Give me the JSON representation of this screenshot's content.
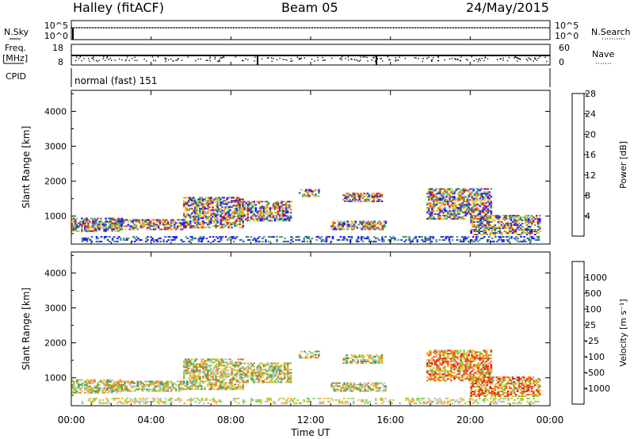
{
  "header": {
    "station": "Halley (fitACF)",
    "beam": "Beam 05",
    "date": "24/May/2015"
  },
  "top_panels": {
    "nsky_label": "N.Sky",
    "nsky_ticks": [
      "10^5",
      "10^0"
    ],
    "nsearch_label": "N.Search",
    "nsearch_ticks": [
      "10^5",
      "10^0"
    ],
    "freq_label_1": "Freq.",
    "freq_label_2": "[MHz]",
    "freq_ticks": [
      "18",
      "8"
    ],
    "nave_label": "Nave",
    "nave_ticks": [
      "60",
      "0"
    ],
    "cpid_label": "CPID",
    "cpid_value": "normal (fast) 151"
  },
  "chart_data": [
    {
      "type": "heatmap",
      "name": "power",
      "ylabel": "Slant Range [km]",
      "ylim": [
        200,
        4600
      ],
      "yticks": [
        "1000",
        "2000",
        "3000",
        "4000"
      ],
      "colorbar_label": "Power [dB]",
      "colorbar_ticks": [
        "4",
        "8",
        "12",
        "16",
        "20",
        "24",
        "28"
      ],
      "colorbar_colors": [
        "#1515ff",
        "#2b4fb0",
        "#4a9a7a",
        "#9bd84a",
        "#f0c020",
        "#f07a10",
        "#e31a1a"
      ]
    },
    {
      "type": "heatmap",
      "name": "velocity",
      "xlabel": "Time UT",
      "ylabel": "Slant Range [km]",
      "ylim": [
        200,
        4600
      ],
      "yticks": [
        "1000",
        "2000",
        "3000",
        "4000"
      ],
      "xticks": [
        "00:00",
        "04:00",
        "08:00",
        "12:00",
        "16:00",
        "20:00",
        "00:00"
      ],
      "colorbar_label": "Velocity [m s⁻¹]",
      "colorbar_ticks": [
        "1000",
        "500",
        "100",
        "25",
        "-25",
        "-100",
        "-500",
        "-1000"
      ],
      "colorbar_colors": [
        "#1f3fb4",
        "#2e69c0",
        "#3b9a6a",
        "#7ed64a",
        "#c0c0c0",
        "#f6b320",
        "#f07a10",
        "#e85020",
        "#e31a1a"
      ]
    }
  ]
}
